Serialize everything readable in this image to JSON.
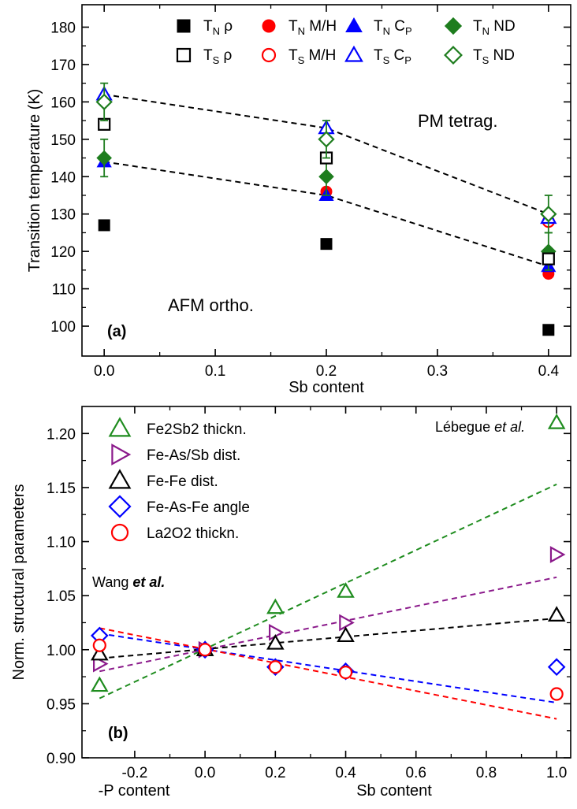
{
  "colors": {
    "resistivity": "#000000",
    "magnetization": "#ff0000",
    "heat_capacity": "#0000ff",
    "neutron": "#1e7d1e",
    "fe2sb2": "#1e8c1e",
    "fe_as_sb": "#8b1a8b",
    "fe_fe": "#000000",
    "fe_as_fe": "#0000ff",
    "la2o2": "#ff0000"
  },
  "panel_a": {
    "panel_label": "(a)",
    "region_upper": "PM tetrag.",
    "region_lower": "AFM ortho.",
    "legend": [
      {
        "main": "T",
        "sub": "N",
        "suffix": " ρ",
        "marker": "square",
        "filled": true,
        "color_key": "resistivity"
      },
      {
        "main": "T",
        "sub": "N",
        "suffix": " M/H",
        "marker": "circle",
        "filled": true,
        "color_key": "magnetization"
      },
      {
        "main": "T",
        "sub": "N",
        "suffix": " C",
        "suffix_sub": "P",
        "marker": "triangle",
        "filled": true,
        "color_key": "heat_capacity"
      },
      {
        "main": "T",
        "sub": "N",
        "suffix": " ND",
        "marker": "diamond",
        "filled": true,
        "color_key": "neutron"
      },
      {
        "main": "T",
        "sub": "S",
        "suffix": " ρ",
        "marker": "square",
        "filled": false,
        "color_key": "resistivity"
      },
      {
        "main": "T",
        "sub": "S",
        "suffix": " M/H",
        "marker": "circle",
        "filled": false,
        "color_key": "magnetization"
      },
      {
        "main": "T",
        "sub": "S",
        "suffix": " C",
        "suffix_sub": "P",
        "marker": "triangle",
        "filled": false,
        "color_key": "heat_capacity"
      },
      {
        "main": "T",
        "sub": "S",
        "suffix": " ND",
        "marker": "diamond",
        "filled": false,
        "color_key": "neutron"
      }
    ]
  },
  "panel_b": {
    "panel_label": "(b)",
    "ref_wang": "Wang",
    "ref_lebegue": "Lébegue",
    "ref_etal": "et al.",
    "xlabel_left": "-P content"
  },
  "chart_data": [
    {
      "type": "scatter",
      "xlabel": "Sb content",
      "ylabel": "Transition temperature (K)",
      "xlim": [
        -0.02,
        0.42
      ],
      "ylim": [
        92,
        186
      ],
      "xticks": [
        0.0,
        0.1,
        0.2,
        0.3,
        0.4
      ],
      "xtick_labels": [
        "0.0",
        "0.1",
        "0.2",
        "0.3",
        "0.4"
      ],
      "yticks": [
        100,
        110,
        120,
        130,
        140,
        150,
        160,
        170,
        180
      ],
      "ytick_labels": [
        "100",
        "110",
        "120",
        "130",
        "140",
        "150",
        "160",
        "170",
        "180"
      ],
      "legend_position": "top",
      "series": [
        {
          "name": "T_N ρ",
          "marker": "square",
          "filled": true,
          "color_key": "resistivity",
          "x": [
            0.0,
            0.2,
            0.4
          ],
          "y": [
            127,
            122,
            99
          ]
        },
        {
          "name": "T_N M/H",
          "marker": "circle",
          "filled": true,
          "color_key": "magnetization",
          "x": [
            0.2,
            0.4
          ],
          "y": [
            136,
            114
          ]
        },
        {
          "name": "T_N C_P",
          "marker": "triangle",
          "filled": true,
          "color_key": "heat_capacity",
          "x": [
            0.0,
            0.2,
            0.4
          ],
          "y": [
            144,
            135,
            116
          ]
        },
        {
          "name": "T_N ND",
          "marker": "diamond",
          "filled": true,
          "color_key": "neutron",
          "x": [
            0.0,
            0.2,
            0.4
          ],
          "y": [
            145,
            140,
            120
          ],
          "yerr": [
            5,
            5,
            5
          ]
        },
        {
          "name": "T_S ρ",
          "marker": "square",
          "filled": false,
          "color_key": "resistivity",
          "x": [
            0.0,
            0.2,
            0.4
          ],
          "y": [
            154,
            145,
            118
          ]
        },
        {
          "name": "T_S M/H",
          "marker": "circle",
          "filled": false,
          "color_key": "magnetization",
          "x": [
            0.4
          ],
          "y": [
            128
          ]
        },
        {
          "name": "T_S C_P",
          "marker": "triangle",
          "filled": false,
          "color_key": "heat_capacity",
          "x": [
            0.0,
            0.2,
            0.4
          ],
          "y": [
            162,
            153,
            129
          ]
        },
        {
          "name": "T_S ND",
          "marker": "diamond",
          "filled": false,
          "color_key": "neutron",
          "x": [
            0.0,
            0.2,
            0.4
          ],
          "y": [
            160,
            150,
            130
          ],
          "yerr": [
            5,
            5,
            5
          ]
        }
      ],
      "guide_lines": [
        {
          "style": "dashed",
          "x": [
            0.0,
            0.2,
            0.4
          ],
          "y": [
            162,
            153,
            130
          ]
        },
        {
          "style": "dashed",
          "x": [
            0.0,
            0.2,
            0.4
          ],
          "y": [
            144,
            135,
            116
          ]
        }
      ]
    },
    {
      "type": "scatter",
      "xlabel": "Sb content",
      "ylabel": "Norm. structural parameters",
      "xlim": [
        -0.35,
        1.04
      ],
      "ylim": [
        0.9,
        1.225
      ],
      "xticks": [
        -0.2,
        0.0,
        0.2,
        0.4,
        0.6,
        0.8,
        1.0
      ],
      "xtick_labels": [
        "-0.2",
        "0.0",
        "0.2",
        "0.4",
        "0.6",
        "0.8",
        "1.0"
      ],
      "yticks": [
        0.9,
        0.95,
        1.0,
        1.05,
        1.1,
        1.15,
        1.2
      ],
      "ytick_labels": [
        "0.90",
        "0.95",
        "1.00",
        "1.05",
        "1.10",
        "1.15",
        "1.20"
      ],
      "legend_position": "top-left",
      "series": [
        {
          "name": "Fe2Sb2 thickn.",
          "marker": "triangle-up",
          "filled": false,
          "color_key": "fe2sb2",
          "x": [
            -0.3,
            0.0,
            0.2,
            0.4,
            1.0
          ],
          "y": [
            0.967,
            1.0,
            1.039,
            1.054,
            1.21
          ]
        },
        {
          "name": "Fe-As/Sb dist.",
          "marker": "triangle-right",
          "filled": false,
          "color_key": "fe_as_sb",
          "x": [
            -0.3,
            0.0,
            0.2,
            0.4,
            1.0
          ],
          "y": [
            0.987,
            1.0,
            1.016,
            1.025,
            1.088
          ]
        },
        {
          "name": "Fe-Fe dist.",
          "marker": "triangle-up",
          "filled": false,
          "color_key": "fe_fe",
          "x": [
            -0.3,
            0.0,
            0.2,
            0.4,
            1.0
          ],
          "y": [
            0.996,
            1.0,
            1.006,
            1.013,
            1.032
          ]
        },
        {
          "name": "Fe-As-Fe angle",
          "marker": "diamond",
          "filled": false,
          "color_key": "fe_as_fe",
          "x": [
            -0.3,
            0.0,
            0.2,
            0.4,
            1.0
          ],
          "y": [
            1.013,
            1.0,
            0.984,
            0.98,
            0.984
          ]
        },
        {
          "name": "La2O2 thickn.",
          "marker": "circle",
          "filled": false,
          "color_key": "la2o2",
          "x": [
            -0.3,
            0.0,
            0.2,
            0.4,
            1.0
          ],
          "y": [
            1.004,
            1.0,
            0.984,
            0.979,
            0.959
          ]
        }
      ],
      "fit_lines": [
        {
          "color_key": "fe2sb2",
          "style": "dashed",
          "x": [
            -0.3,
            1.0
          ],
          "y": [
            0.955,
            1.153
          ]
        },
        {
          "color_key": "fe_as_sb",
          "style": "dashed",
          "x": [
            -0.3,
            1.0
          ],
          "y": [
            0.98,
            1.067
          ]
        },
        {
          "color_key": "fe_fe",
          "style": "dashed",
          "x": [
            -0.3,
            1.0
          ],
          "y": [
            0.992,
            1.029
          ]
        },
        {
          "color_key": "fe_as_fe",
          "style": "dashed",
          "x": [
            -0.3,
            1.0
          ],
          "y": [
            1.015,
            0.951
          ]
        },
        {
          "color_key": "la2o2",
          "style": "dashed",
          "x": [
            -0.3,
            1.0
          ],
          "y": [
            1.02,
            0.936
          ]
        }
      ]
    }
  ]
}
